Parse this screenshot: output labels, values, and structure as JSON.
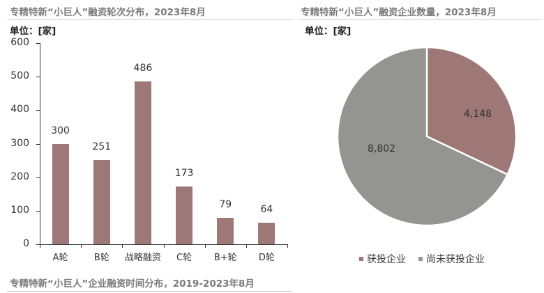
{
  "left_panel": {
    "title": "专精特新“小巨人”融资轮次分布，2023年8月",
    "unit": "单位：[家]",
    "bottom_title": "专精特新“小巨人”企业融资时间分布，2019-2023年8月"
  },
  "right_panel": {
    "title": "专精特新“小巨人”融资企业数量，2023年8月",
    "unit": "单位：[家]"
  },
  "colors": {
    "bar": "#9e7777",
    "pie_invested": "#9e7777",
    "pie_not_invested": "#949490"
  },
  "chart_data": [
    {
      "type": "bar",
      "title": "专精特新“小巨人”融资轮次分布，2023年8月",
      "ylabel": "单位：[家]",
      "xlabel": "",
      "categories": [
        "A轮",
        "B轮",
        "战略融资",
        "C轮",
        "B+轮",
        "D轮"
      ],
      "values": [
        300,
        251,
        486,
        173,
        79,
        64
      ],
      "value_labels": [
        "300",
        "251",
        "486",
        "173",
        "79",
        "64"
      ],
      "yticks": [
        "0",
        "100",
        "200",
        "300",
        "400",
        "500",
        "600"
      ],
      "ylim": [
        0,
        600
      ],
      "grid": false,
      "legend": "none"
    },
    {
      "type": "pie",
      "title": "专精特新“小巨人”融资企业数量，2023年8月",
      "ylabel": "单位：[家]",
      "categories": [
        "获投企业",
        "尚未获投企业"
      ],
      "values": [
        4148,
        8802
      ],
      "value_labels": [
        "4,148",
        "8,802"
      ],
      "legend": "bottom"
    }
  ]
}
